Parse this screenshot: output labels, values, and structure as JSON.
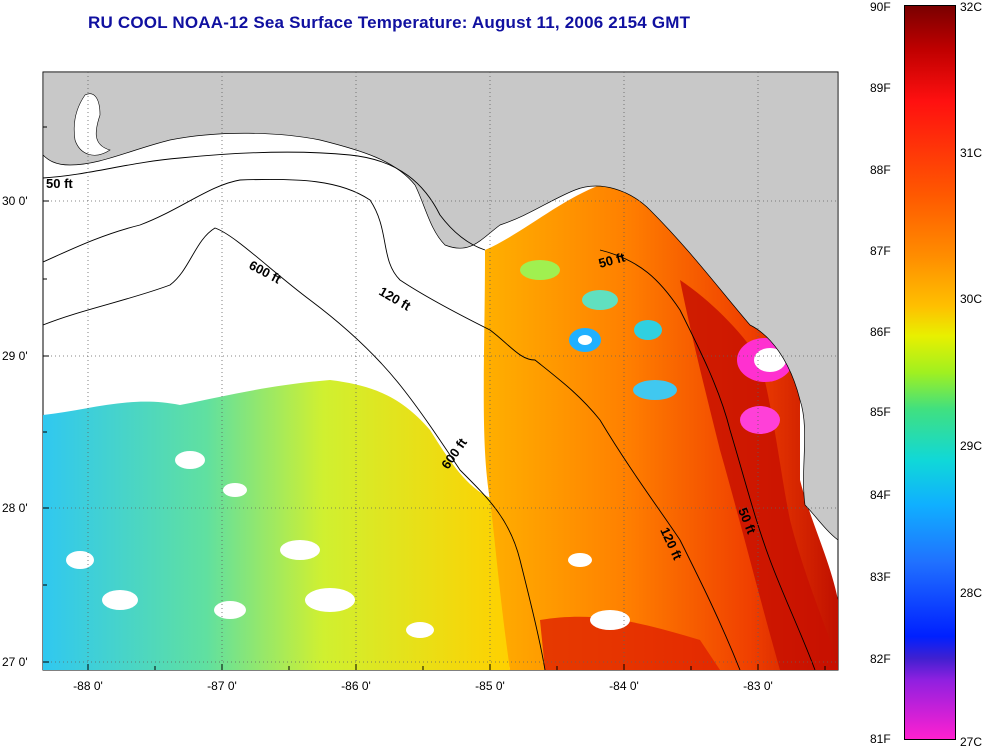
{
  "title": "RU COOL  NOAA-12  Sea Surface Temperature:  August 11, 2006 2154 GMT",
  "map": {
    "lat_labels": [
      "30 0'",
      "29 0'",
      "28 0'",
      "27 0'"
    ],
    "lon_labels": [
      "-88 0'",
      "-87 0'",
      "-86 0'",
      "-85 0'",
      "-84 0'",
      "-83 0'"
    ],
    "contour_labels": [
      "50 ft",
      "600 ft",
      "120 ft",
      "50 ft",
      "600 ft",
      "120 ft",
      "50 ft"
    ],
    "colors": {
      "land": "#c8c8c8",
      "no_data": "#ffffff",
      "grid": "#606060"
    }
  },
  "colorbar": {
    "fahrenheit": [
      "90F",
      "89F",
      "88F",
      "87F",
      "86F",
      "85F",
      "84F",
      "83F",
      "82F",
      "81F"
    ],
    "celsius": [
      "32C",
      "31C",
      "30C",
      "29C",
      "28C",
      "27C"
    ]
  }
}
